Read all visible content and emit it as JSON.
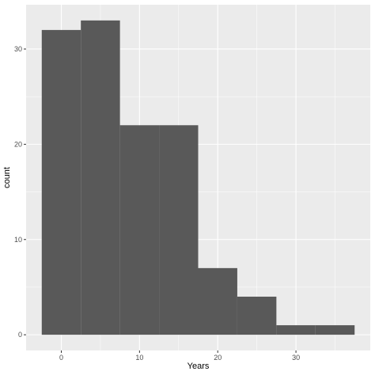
{
  "chart_data": {
    "type": "bar",
    "subtype": "histogram",
    "bins": [
      {
        "x_start": -2.5,
        "x_end": 2.5,
        "count": 32
      },
      {
        "x_start": 2.5,
        "x_end": 7.5,
        "count": 33
      },
      {
        "x_start": 7.5,
        "x_end": 12.5,
        "count": 22
      },
      {
        "x_start": 12.5,
        "x_end": 17.5,
        "count": 22
      },
      {
        "x_start": 17.5,
        "x_end": 22.5,
        "count": 7
      },
      {
        "x_start": 22.5,
        "x_end": 27.5,
        "count": 4
      },
      {
        "x_start": 27.5,
        "x_end": 32.5,
        "count": 1
      },
      {
        "x_start": 32.5,
        "x_end": 37.5,
        "count": 1
      }
    ],
    "xlabel": "Years",
    "ylabel": "count",
    "xlim": [
      -4.5,
      39.5
    ],
    "ylim": [
      -1.65,
      34.65
    ],
    "x_ticks": [
      0,
      10,
      20,
      30
    ],
    "y_ticks": [
      0,
      10,
      20,
      30
    ],
    "grid": true,
    "colors": {
      "panel_background": "#ebebeb",
      "major_grid": "#ffffff",
      "bar_fill": "#595959",
      "tick_label": "#4d4d4d",
      "axis_title": "#000000"
    }
  }
}
